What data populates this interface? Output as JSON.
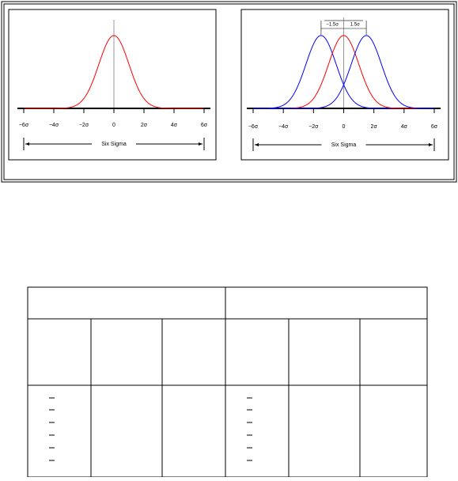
{
  "chart_data": [
    {
      "type": "normal-curves",
      "series": [
        {
          "color": "#ff0000",
          "mean": 0,
          "sd": 1
        }
      ],
      "xlim": [
        -6,
        6
      ],
      "ylim": [
        0,
        0.42
      ],
      "xticks": [
        {
          "value": -6,
          "label": "−6σ"
        },
        {
          "value": -4,
          "label": "−4σ"
        },
        {
          "value": -2,
          "label": "−2σ"
        },
        0,
        {
          "value": 2,
          "label": "2σ"
        },
        {
          "value": 4,
          "label": "4σ"
        },
        {
          "value": 6,
          "label": "6σ"
        }
      ],
      "vline": 0,
      "span_label": "Six Sigma"
    },
    {
      "type": "normal-curves",
      "series": [
        {
          "color": "#0000ff",
          "mean": -1.5,
          "sd": 1
        },
        {
          "color": "#ff0000",
          "mean": 0,
          "sd": 1
        },
        {
          "color": "#0000ff",
          "mean": 1.5,
          "sd": 1
        }
      ],
      "xlim": [
        -6,
        6
      ],
      "ylim": [
        0,
        0.42
      ],
      "xticks": [
        {
          "value": -6,
          "label": "−6σ"
        },
        {
          "value": -4,
          "label": "−4σ"
        },
        {
          "value": -2,
          "label": "−2σ"
        },
        0,
        {
          "value": 2,
          "label": "2σ"
        },
        {
          "value": 4,
          "label": "4σ"
        },
        {
          "value": 6,
          "label": "6σ"
        }
      ],
      "vline": 0,
      "annotations": [
        {
          "value": -1.5,
          "label": "−1.5σ"
        },
        {
          "value": 1.5,
          "label": "1.5σ"
        }
      ],
      "span_label": "Six Sigma"
    }
  ]
}
